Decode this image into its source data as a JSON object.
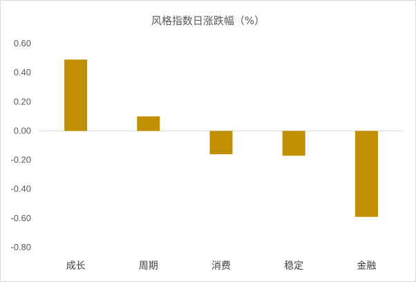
{
  "chart_data": {
    "type": "bar",
    "title": "风格指数日涨跌幅（%）",
    "categories": [
      "成长",
      "周期",
      "消费",
      "稳定",
      "金融"
    ],
    "values": [
      0.49,
      0.1,
      -0.16,
      -0.17,
      -0.59
    ],
    "ylim": [
      -0.8,
      0.6
    ],
    "yticks": [
      "0.60",
      "0.40",
      "0.20",
      "0.00",
      "-0.20",
      "-0.40",
      "-0.60",
      "-0.80"
    ],
    "ytick_values": [
      0.6,
      0.4,
      0.2,
      0.0,
      -0.2,
      -0.4,
      -0.6,
      -0.8
    ],
    "grid": false,
    "legend": "none",
    "bar_color": "#C09000",
    "axis_color": "#d9d9d9"
  }
}
